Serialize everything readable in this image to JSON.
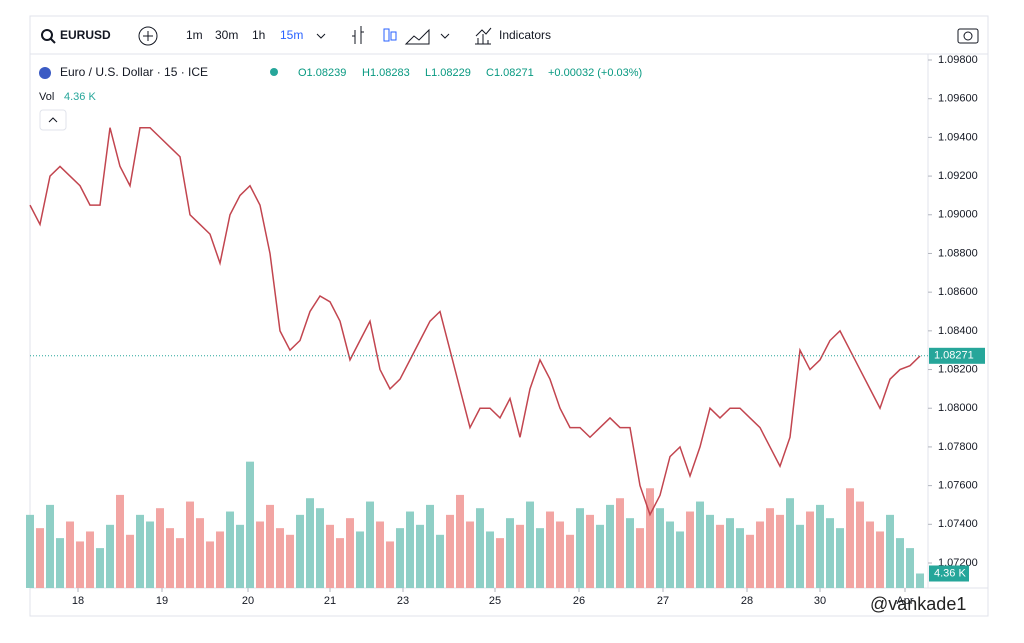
{
  "toolbar": {
    "symbol": "EURUSD",
    "intervals": [
      "1m",
      "30m",
      "1h",
      "15m"
    ],
    "indicators": "Indicators"
  },
  "legend": {
    "title": "Euro / U.S. Dollar · 15 · ICE",
    "open": "O1.08239",
    "high": "H1.08283",
    "low": "L1.08229",
    "close": "C1.08271",
    "change": "+0.00032 (+0.03%)"
  },
  "watermark": "@vankade1",
  "chart_data": {
    "type": "line",
    "xlim": [
      0,
      89
    ],
    "xticks": [
      {
        "value": 4.8,
        "label": "18"
      },
      {
        "value": 13.2,
        "label": "19"
      },
      {
        "value": 21.8,
        "label": "20"
      },
      {
        "value": 30,
        "label": "21"
      },
      {
        "value": 37.3,
        "label": "23"
      },
      {
        "value": 46.5,
        "label": "25"
      },
      {
        "value": 54.9,
        "label": "26"
      },
      {
        "value": 63.3,
        "label": "27"
      },
      {
        "value": 71.7,
        "label": "28"
      },
      {
        "value": 79,
        "label": "30"
      },
      {
        "value": 87.5,
        "label": "Apr"
      }
    ],
    "ylim": [
      1.072,
      1.098
    ],
    "yticks": [
      {
        "value": 1.098,
        "label": "1.09800"
      },
      {
        "value": 1.096,
        "label": "1.09600"
      },
      {
        "value": 1.094,
        "label": "1.09400"
      },
      {
        "value": 1.092,
        "label": "1.09200"
      },
      {
        "value": 1.09,
        "label": "1.09000"
      },
      {
        "value": 1.088,
        "label": "1.08800"
      },
      {
        "value": 1.086,
        "label": "1.08600"
      },
      {
        "value": 1.084,
        "label": "1.08400"
      },
      {
        "value": 1.082,
        "label": "1.08200"
      },
      {
        "value": 1.08,
        "label": "1.08000"
      },
      {
        "value": 1.078,
        "label": "1.07800"
      },
      {
        "value": 1.076,
        "label": "1.07600"
      },
      {
        "value": 1.074,
        "label": "1.07400"
      },
      {
        "value": 1.072,
        "label": "1.07200"
      }
    ],
    "y2lim": [
      0,
      40
    ],
    "last_price": {
      "value": 1.08271,
      "label": "1.08271"
    },
    "series": [
      {
        "color": "#c2454f",
        "values": [
          1.0905,
          1.0895,
          1.092,
          1.0925,
          1.092,
          1.0915,
          1.0905,
          1.0905,
          1.0945,
          1.0925,
          1.0915,
          1.0945,
          1.0945,
          1.094,
          1.0935,
          1.093,
          1.09,
          1.0895,
          1.089,
          1.0875,
          1.09,
          1.091,
          1.0915,
          1.0905,
          1.088,
          1.084,
          1.083,
          1.0835,
          1.085,
          1.0858,
          1.0855,
          1.0845,
          1.0825,
          1.0835,
          1.0845,
          1.082,
          1.081,
          1.0815,
          1.0825,
          1.0835,
          1.0845,
          1.085,
          1.083,
          1.081,
          1.079,
          1.08,
          1.08,
          1.0795,
          1.0805,
          1.0785,
          1.081,
          1.0825,
          1.0815,
          1.08,
          1.079,
          1.079,
          1.0785,
          1.079,
          1.0795,
          1.079,
          1.079,
          1.076,
          1.0745,
          1.0755,
          1.0775,
          1.078,
          1.0765,
          1.078,
          1.08,
          1.0795,
          1.08,
          1.08,
          1.0795,
          1.079,
          1.078,
          1.077,
          1.0785,
          1.083,
          1.082,
          1.0825,
          1.0835,
          1.084,
          1.083,
          1.082,
          1.081,
          1.08,
          1.0815,
          1.082,
          1.0822,
          1.0827
        ]
      },
      {
        "name": "Vol",
        "axis": "y2",
        "up_color": "#8fcfc6",
        "down_color": "#f2a5a3",
        "values": [
          22,
          18,
          25,
          15,
          20,
          14,
          17,
          12,
          19,
          28,
          16,
          22,
          20,
          24,
          18,
          15,
          26,
          21,
          14,
          17,
          23,
          19,
          38,
          20,
          25,
          18,
          16,
          22,
          27,
          24,
          19,
          15,
          21,
          17,
          26,
          20,
          14,
          18,
          23,
          19,
          25,
          16,
          22,
          28,
          20,
          24,
          17,
          15,
          21,
          19,
          26,
          18,
          23,
          20,
          16,
          24,
          22,
          19,
          25,
          27,
          21,
          18,
          30,
          24,
          20,
          17,
          23,
          26,
          22,
          19,
          21,
          18,
          16,
          20,
          24,
          22,
          27,
          19,
          23,
          25,
          21,
          18,
          30,
          26,
          20,
          17,
          22,
          15,
          12,
          4.36
        ],
        "value_labels": {
          "89": "4.36 K"
        }
      }
    ]
  }
}
